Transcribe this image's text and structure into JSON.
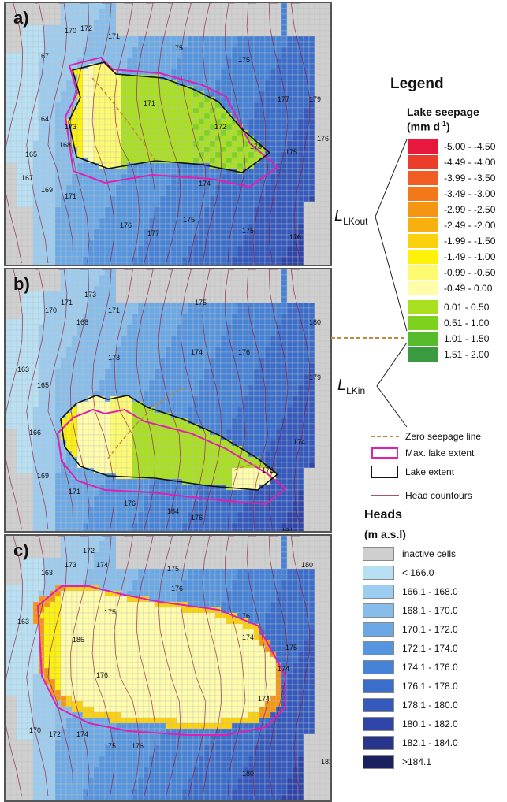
{
  "panels": [
    {
      "label": "a)",
      "mode": "a",
      "contours": [
        {
          "text": "167",
          "at": [
            40,
            70
          ]
        },
        {
          "text": "170",
          "at": [
            75,
            38
          ]
        },
        {
          "text": "172",
          "at": [
            95,
            35
          ]
        },
        {
          "text": "171",
          "at": [
            130,
            45
          ]
        },
        {
          "text": "175",
          "at": [
            210,
            60
          ]
        },
        {
          "text": "175",
          "at": [
            295,
            75
          ]
        },
        {
          "text": "177",
          "at": [
            345,
            125
          ]
        },
        {
          "text": "179",
          "at": [
            385,
            125
          ]
        },
        {
          "text": "175",
          "at": [
            355,
            192
          ]
        },
        {
          "text": "176",
          "at": [
            395,
            175
          ]
        },
        {
          "text": "164",
          "at": [
            40,
            150
          ]
        },
        {
          "text": "165",
          "at": [
            25,
            195
          ]
        },
        {
          "text": "167",
          "at": [
            20,
            225
          ]
        },
        {
          "text": "169",
          "at": [
            45,
            240
          ]
        },
        {
          "text": "171",
          "at": [
            75,
            248
          ]
        },
        {
          "text": "173",
          "at": [
            75,
            160
          ]
        },
        {
          "text": "168",
          "at": [
            68,
            183
          ]
        },
        {
          "text": "171",
          "at": [
            175,
            130
          ]
        },
        {
          "text": "172",
          "at": [
            265,
            160
          ]
        },
        {
          "text": "173",
          "at": [
            310,
            185
          ]
        },
        {
          "text": "174",
          "at": [
            245,
            232
          ]
        },
        {
          "text": "176",
          "at": [
            145,
            285
          ]
        },
        {
          "text": "177",
          "at": [
            180,
            295
          ]
        },
        {
          "text": "175",
          "at": [
            225,
            278
          ]
        },
        {
          "text": "175",
          "at": [
            300,
            292
          ]
        },
        {
          "text": "176",
          "at": [
            360,
            300
          ]
        }
      ]
    },
    {
      "label": "b)",
      "mode": "b",
      "contours": [
        {
          "text": "170",
          "at": [
            50,
            55
          ]
        },
        {
          "text": "171",
          "at": [
            70,
            45
          ]
        },
        {
          "text": "173",
          "at": [
            100,
            35
          ]
        },
        {
          "text": "168",
          "at": [
            90,
            70
          ]
        },
        {
          "text": "171",
          "at": [
            130,
            55
          ]
        },
        {
          "text": "175",
          "at": [
            240,
            45
          ]
        },
        {
          "text": "176",
          "at": [
            295,
            108
          ]
        },
        {
          "text": "180",
          "at": [
            385,
            70
          ]
        },
        {
          "text": "179",
          "at": [
            385,
            140
          ]
        },
        {
          "text": "174",
          "at": [
            235,
            108
          ]
        },
        {
          "text": "173",
          "at": [
            130,
            115
          ]
        },
        {
          "text": "174",
          "at": [
            365,
            222
          ]
        },
        {
          "text": "173",
          "at": [
            325,
            258
          ]
        },
        {
          "text": "165",
          "at": [
            40,
            150
          ]
        },
        {
          "text": "163",
          "at": [
            15,
            130
          ]
        },
        {
          "text": "166",
          "at": [
            30,
            210
          ]
        },
        {
          "text": "169",
          "at": [
            40,
            265
          ]
        },
        {
          "text": "171",
          "at": [
            80,
            285
          ]
        },
        {
          "text": "176",
          "at": [
            150,
            300
          ]
        },
        {
          "text": "177",
          "at": [
            165,
            345
          ]
        },
        {
          "text": "184",
          "at": [
            205,
            310
          ]
        },
        {
          "text": "176",
          "at": [
            235,
            318
          ]
        },
        {
          "text": "181",
          "at": [
            350,
            335
          ]
        }
      ]
    },
    {
      "label": "c)",
      "mode": "c",
      "contours": [
        {
          "text": "172",
          "at": [
            98,
            22
          ]
        },
        {
          "text": "173",
          "at": [
            75,
            40
          ]
        },
        {
          "text": "174",
          "at": [
            115,
            40
          ]
        },
        {
          "text": "175",
          "at": [
            205,
            45
          ]
        },
        {
          "text": "180",
          "at": [
            375,
            40
          ]
        },
        {
          "text": "176",
          "at": [
            210,
            70
          ]
        },
        {
          "text": "176",
          "at": [
            295,
            105
          ]
        },
        {
          "text": "163",
          "at": [
            45,
            50
          ]
        },
        {
          "text": "163",
          "at": [
            15,
            112
          ]
        },
        {
          "text": "175",
          "at": [
            125,
            100
          ]
        },
        {
          "text": "174",
          "at": [
            300,
            132
          ]
        },
        {
          "text": "175",
          "at": [
            355,
            145
          ]
        },
        {
          "text": "174",
          "at": [
            345,
            172
          ]
        },
        {
          "text": "185",
          "at": [
            85,
            135
          ]
        },
        {
          "text": "176",
          "at": [
            115,
            180
          ]
        },
        {
          "text": "174",
          "at": [
            320,
            210
          ]
        },
        {
          "text": "170",
          "at": [
            30,
            250
          ]
        },
        {
          "text": "172",
          "at": [
            55,
            255
          ]
        },
        {
          "text": "174",
          "at": [
            90,
            255
          ]
        },
        {
          "text": "175",
          "at": [
            125,
            270
          ]
        },
        {
          "text": "176",
          "at": [
            160,
            270
          ]
        },
        {
          "text": "180",
          "at": [
            300,
            305
          ]
        },
        {
          "text": "182",
          "at": [
            400,
            290
          ]
        }
      ]
    }
  ],
  "legend": {
    "title": "Legend",
    "lake_seepage_title": "Lake seepage",
    "lake_seepage_unit": "(mm d",
    "lake_seepage_sup": "-1",
    "lake_seepage_unit_end": ")",
    "seepage_classes": [
      {
        "label": "-5.00 - -4.50",
        "color": "#e8183c"
      },
      {
        "label": "-4.49 - -4.00",
        "color": "#ec3d2a"
      },
      {
        "label": "-3.99 - -3.50",
        "color": "#f05c22"
      },
      {
        "label": "-3.49 - -3.00",
        "color": "#f3781a"
      },
      {
        "label": "-2.99 - -2.50",
        "color": "#f59514"
      },
      {
        "label": "-2.49 - -2.00",
        "color": "#f8b00f"
      },
      {
        "label": "-1.99 - -1.50",
        "color": "#fbd00c"
      },
      {
        "label": "-1.49 - -1.00",
        "color": "#fdf208"
      },
      {
        "label": "-0.99 - -0.50",
        "color": "#fefa70"
      },
      {
        "label": "-0.49 - 0.00",
        "color": "#fffcaa"
      },
      {
        "label": "0.01 - 0.50",
        "color": "#a8e020"
      },
      {
        "label": "0.51 - 1.00",
        "color": "#7cd21c"
      },
      {
        "label": "1.01 - 1.50",
        "color": "#56bb2a"
      },
      {
        "label": "1.51 - 2.00",
        "color": "#3a9a40"
      }
    ],
    "lkout_main": "L",
    "lkout_sub": "LKout",
    "lkin_main": "L",
    "lkin_sub": "LKin",
    "zero_seepage_label": "Zero seepage line",
    "max_lake_label": "Max. lake extent",
    "lake_extent_label": "Lake extent",
    "head_contours_label": "Head countours",
    "heads_title": "Heads",
    "heads_unit": "(m a.s.l)",
    "head_classes": [
      {
        "label": "inactive cells",
        "color": "#cfcfcf"
      },
      {
        "label": "< 166.0",
        "color": "#b7e0f4"
      },
      {
        "label": "166.1 - 168.0",
        "color": "#9ccdf0"
      },
      {
        "label": "168.1 - 170.0",
        "color": "#86bdeb"
      },
      {
        "label": "170.1 - 172.0",
        "color": "#6aa9e6"
      },
      {
        "label": "172.1 - 174.0",
        "color": "#5595df"
      },
      {
        "label": "174.1 - 176.0",
        "color": "#4682d6"
      },
      {
        "label": "176.1 - 178.0",
        "color": "#3b6ecb"
      },
      {
        "label": "178.1 - 180.0",
        "color": "#3559bd"
      },
      {
        "label": "180.1 - 182.0",
        "color": "#2f46a8"
      },
      {
        "label": "182.1 - 184.0",
        "color": "#28358d"
      },
      {
        "label": ">184.1",
        "color": "#1a215e"
      }
    ],
    "colors": {
      "zero_line": "#c08a3a",
      "max_lake": "#e020b0",
      "lake_extent": "#111111",
      "head_contour": "#8b1a3a"
    }
  }
}
